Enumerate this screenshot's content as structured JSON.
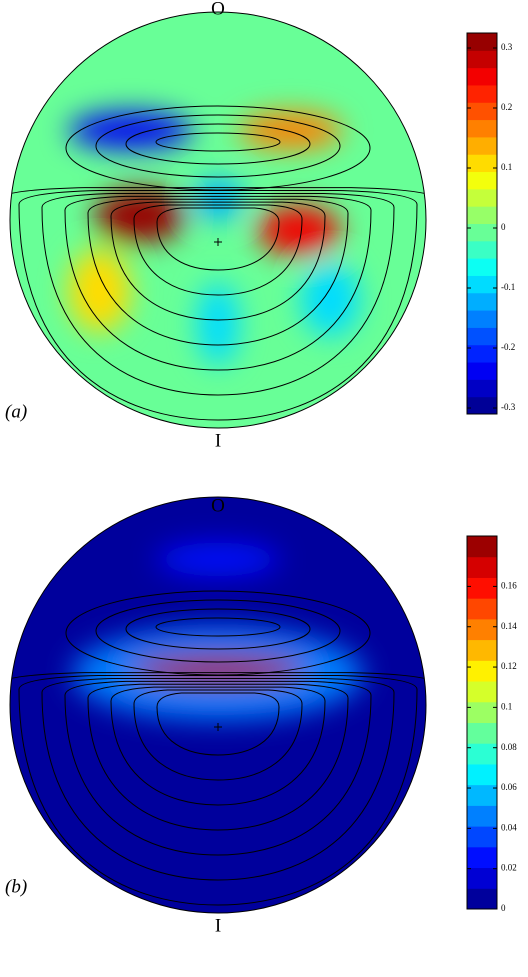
{
  "chart_data": [
    {
      "type": "contour",
      "top_label": "O",
      "bottom_label": "I",
      "panel_label": "(a)",
      "colormap": "jet",
      "levels": 22,
      "clim": [
        -0.31,
        0.325
      ],
      "cticks": [
        -0.3,
        -0.2,
        -0.1,
        0,
        0.1,
        0.2,
        0.3
      ],
      "background": 0,
      "features": [
        {
          "x": -0.42,
          "y": 0.43,
          "rx": 0.3,
          "ry": 0.09,
          "value": -0.25
        },
        {
          "x": 0.35,
          "y": 0.43,
          "rx": 0.25,
          "ry": 0.09,
          "value": 0.18
        },
        {
          "x": 0,
          "y": 0.1,
          "rx": 0.12,
          "ry": 0.1,
          "value": -0.12
        },
        {
          "x": -0.57,
          "y": -0.34,
          "rx": 0.15,
          "ry": 0.2,
          "value": 0.12
        },
        {
          "x": 0.54,
          "y": -0.38,
          "rx": 0.14,
          "ry": 0.18,
          "value": -0.08
        },
        {
          "x": 0,
          "y": -0.5,
          "rx": 0.1,
          "ry": 0.2,
          "value": -0.08
        },
        {
          "x": -0.375,
          "y": 0.02,
          "rx": 0.22,
          "ry": 0.13,
          "value": 0.32
        },
        {
          "x": 0.39,
          "y": -0.05,
          "rx": 0.2,
          "ry": 0.12,
          "value": 0.25
        }
      ]
    },
    {
      "type": "contour",
      "top_label": "O",
      "bottom_label": "I",
      "panel_label": "(b)",
      "colormap": "jet",
      "levels": 18,
      "clim": [
        0,
        0.185
      ],
      "cticks": [
        0,
        0.02,
        0.04,
        0.06,
        0.08,
        0.1,
        0.12,
        0.14,
        0.16
      ],
      "background": 0.01,
      "features": [
        {
          "x": 0,
          "y": 0.15,
          "rx": 0.7,
          "ry": 0.22,
          "value": 0.05
        },
        {
          "x": 0,
          "y": 0.7,
          "rx": 0.3,
          "ry": 0.08,
          "value": 0.03
        },
        {
          "x": 0,
          "y": 0.17,
          "rx": 0.42,
          "ry": 0.07,
          "value": 0.175
        }
      ]
    }
  ]
}
